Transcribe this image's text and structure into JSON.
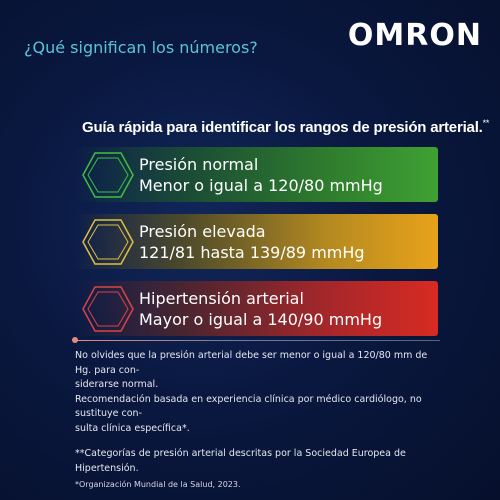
{
  "brand": {
    "logo_text": "OMRON"
  },
  "header": {
    "question": "¿Qué significan los números?"
  },
  "guide": {
    "title": "Guía rápida para identificar los rangos de presión arterial.",
    "title_mark": "**"
  },
  "categories": [
    {
      "name": "Presión normal",
      "range": "Menor o igual a 120/80 mmHg",
      "color": "#3fa133",
      "hex_color": "#3fbf3f"
    },
    {
      "name": "Presión elevada",
      "range": "121/81 hasta 139/89 mmHg",
      "color": "#e8a21a",
      "hex_color": "#e0c040"
    },
    {
      "name": "Hipertensión arterial",
      "range": "Mayor o igual a 140/90 mmHg",
      "color": "#d82a22",
      "hex_color": "#d84545"
    }
  ],
  "notes": {
    "line1": "No olvides que la presión arterial debe ser menor o igual a 120/80 mm de Hg. para con-",
    "line2": "siderarse normal.",
    "line3": "Recomendación basada en experiencia clínica por médico cardiólogo, no sustituye con-",
    "line4": "sulta clínica específica*.",
    "footnote": "**Categorías de presión arterial descritas por la Sociedad Europea de Hipertensión."
  },
  "source": "*Organización Mundial de la Salud, 2023."
}
